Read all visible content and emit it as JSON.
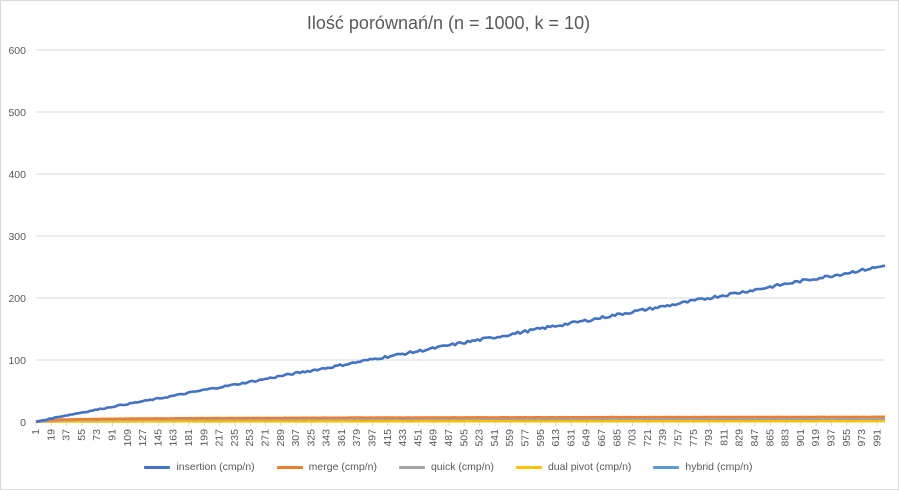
{
  "chart_data": {
    "type": "line",
    "title": "Ilość porównań/n (n = 1000, k = 10)",
    "xlabel": "",
    "ylabel": "",
    "ylim": [
      0,
      600
    ],
    "yticks": [
      0,
      100,
      200,
      300,
      400,
      500,
      600
    ],
    "x_range": [
      1,
      1000
    ],
    "xticks": [
      1,
      19,
      37,
      55,
      73,
      91,
      109,
      127,
      145,
      163,
      181,
      199,
      217,
      235,
      253,
      271,
      289,
      307,
      325,
      343,
      361,
      379,
      397,
      415,
      433,
      451,
      469,
      487,
      505,
      523,
      541,
      559,
      577,
      595,
      613,
      631,
      649,
      667,
      685,
      703,
      721,
      739,
      757,
      775,
      793,
      811,
      829,
      847,
      865,
      883,
      901,
      919,
      937,
      955,
      973,
      991
    ],
    "grid": "horizontal",
    "legend_position": "bottom",
    "series": [
      {
        "name": "insertion (cmp/n)",
        "color": "#4472c4",
        "x": [
          1,
          10,
          20,
          30,
          50,
          100,
          150,
          200,
          250,
          300,
          350,
          400,
          450,
          500,
          550,
          600,
          650,
          700,
          750,
          800,
          850,
          900,
          950,
          1000
        ],
        "values": [
          0.5,
          3,
          6,
          9,
          14,
          27,
          39,
          52,
          64,
          77,
          89,
          102,
          114,
          127,
          139,
          152,
          164,
          177,
          189,
          202,
          214,
          227,
          239,
          252
        ]
      },
      {
        "name": "merge (cmp/n)",
        "color": "#ed7d31",
        "x": [
          1,
          10,
          20,
          30,
          50,
          100,
          150,
          200,
          250,
          300,
          350,
          400,
          450,
          500,
          550,
          600,
          650,
          700,
          750,
          800,
          850,
          900,
          950,
          1000
        ],
        "values": [
          0.5,
          2.5,
          3.4,
          4.0,
          4.5,
          5.4,
          5.9,
          6.3,
          6.6,
          6.8,
          7.0,
          7.2,
          7.3,
          7.5,
          7.6,
          7.7,
          7.8,
          7.9,
          8.0,
          8.1,
          8.2,
          8.3,
          8.3,
          8.4
        ]
      },
      {
        "name": "quick (cmp/n)",
        "color": "#a5a5a5",
        "x": [
          1,
          10,
          20,
          30,
          50,
          100,
          150,
          200,
          250,
          300,
          350,
          400,
          450,
          500,
          550,
          600,
          650,
          700,
          750,
          800,
          850,
          900,
          950,
          1000
        ],
        "values": [
          0.4,
          1.5,
          2.3,
          2.8,
          3.3,
          4.0,
          4.4,
          4.7,
          4.9,
          5.1,
          5.2,
          5.3,
          5.4,
          5.5,
          5.5,
          5.6,
          5.7,
          5.7,
          5.8,
          5.8,
          5.9,
          5.9,
          6.0,
          6.0
        ]
      },
      {
        "name": "dual pivot (cmp/n)",
        "color": "#ffc000",
        "x": [
          1,
          10,
          20,
          30,
          50,
          100,
          150,
          200,
          250,
          300,
          350,
          400,
          450,
          500,
          550,
          600,
          650,
          700,
          750,
          800,
          850,
          900,
          950,
          1000
        ],
        "values": [
          0.3,
          0.5,
          0.6,
          0.7,
          0.8,
          0.9,
          1.0,
          1.0,
          1.0,
          1.1,
          1.1,
          1.1,
          1.1,
          1.2,
          1.2,
          1.2,
          1.2,
          1.2,
          1.2,
          1.2,
          1.3,
          1.3,
          1.3,
          1.3
        ]
      },
      {
        "name": "hybrid (cmp/n)",
        "color": "#5b9bd5",
        "x": [
          1,
          10,
          20,
          30,
          50,
          100,
          150,
          200,
          250,
          300,
          350,
          400,
          450,
          500,
          550,
          600,
          650,
          700,
          750,
          800,
          850,
          900,
          950,
          1000
        ],
        "values": [
          0.3,
          0.6,
          0.8,
          1.0,
          1.2,
          1.5,
          1.6,
          1.7,
          1.8,
          1.9,
          1.9,
          2.0,
          2.0,
          2.0,
          2.1,
          2.1,
          2.1,
          2.1,
          2.2,
          2.2,
          2.2,
          2.2,
          2.2,
          2.3
        ]
      }
    ]
  }
}
